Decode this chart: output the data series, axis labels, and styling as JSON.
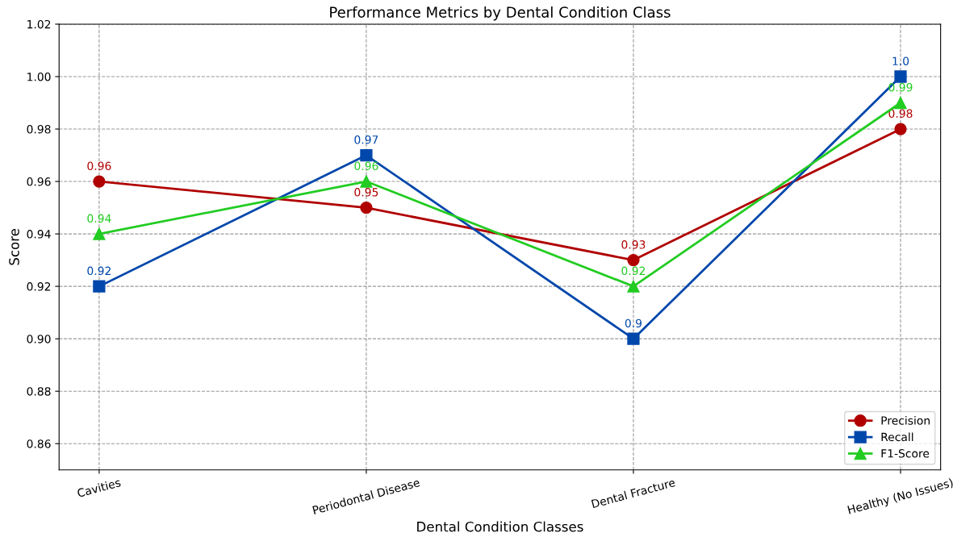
{
  "chart_data": {
    "type": "line",
    "title": "Performance Metrics by Dental Condition Class",
    "xlabel": "Dental Condition Classes",
    "ylabel": "Score",
    "categories": [
      "Cavities",
      "Periodontal Disease",
      "Dental Fracture",
      "Healthy (No Issues)"
    ],
    "series": [
      {
        "name": "Precision",
        "color": "#b00000",
        "values": [
          0.96,
          0.95,
          0.93,
          0.98
        ],
        "value_labels": [
          "0.96",
          "0.95",
          "0.93",
          "0.98"
        ],
        "marker": "circle"
      },
      {
        "name": "Recall",
        "color": "#0047ab",
        "values": [
          0.92,
          0.97,
          0.9,
          1.0
        ],
        "value_labels": [
          "0.92",
          "0.97",
          "0.9",
          "1.0"
        ],
        "marker": "square"
      },
      {
        "name": "F1-Score",
        "color": "#22cc22",
        "values": [
          0.94,
          0.96,
          0.92,
          0.99
        ],
        "value_labels": [
          "0.94",
          "0.96",
          "0.92",
          "0.99"
        ],
        "marker": "triangle"
      }
    ],
    "ylim": [
      0.85,
      1.02
    ],
    "yticks": [
      {
        "value": 0.86,
        "label": "0.86"
      },
      {
        "value": 0.88,
        "label": "0.88"
      },
      {
        "value": 0.9,
        "label": "0.90"
      },
      {
        "value": 0.92,
        "label": "0.92"
      },
      {
        "value": 0.94,
        "label": "0.94"
      },
      {
        "value": 0.96,
        "label": "0.96"
      },
      {
        "value": 0.98,
        "label": "0.98"
      },
      {
        "value": 1.0,
        "label": "1.00"
      },
      {
        "value": 1.02,
        "label": "1.02"
      }
    ],
    "grid": true,
    "legend": "lower right",
    "line_style": "solid"
  }
}
